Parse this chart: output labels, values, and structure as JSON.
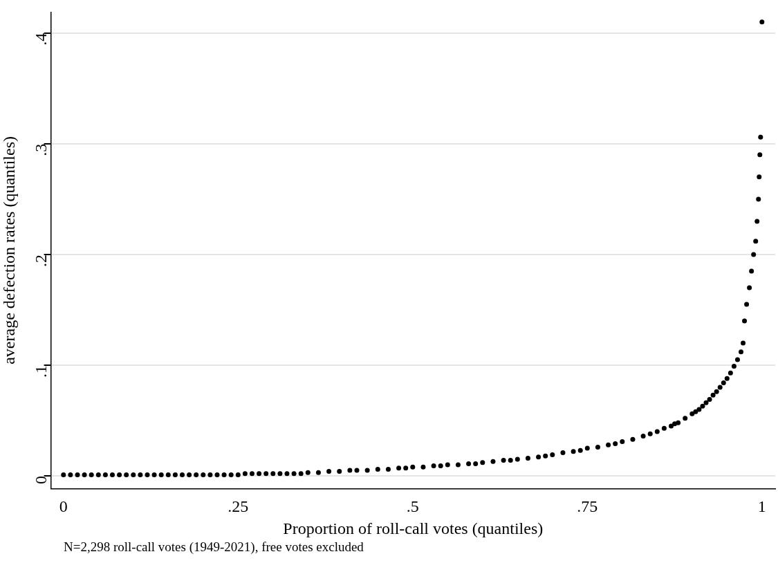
{
  "chart_data": {
    "type": "scatter",
    "xlabel": "Proportion of roll-call votes (quantiles)",
    "ylabel": "average defection rates (quantiles)",
    "annotations": [
      "N=2,298 roll-call votes (1949-2021), free votes excluded"
    ],
    "x": [
      0,
      0.01,
      0.02,
      0.03,
      0.04,
      0.05,
      0.06,
      0.07,
      0.08,
      0.09,
      0.1,
      0.11,
      0.12,
      0.13,
      0.14,
      0.15,
      0.16,
      0.17,
      0.18,
      0.19,
      0.2,
      0.21,
      0.22,
      0.23,
      0.24,
      0.25,
      0.26,
      0.27,
      0.28,
      0.29,
      0.3,
      0.31,
      0.32,
      0.33,
      0.34,
      0.35,
      0.365,
      0.38,
      0.395,
      0.41,
      0.42,
      0.435,
      0.45,
      0.465,
      0.48,
      0.49,
      0.5,
      0.515,
      0.53,
      0.54,
      0.55,
      0.565,
      0.58,
      0.59,
      0.6,
      0.615,
      0.63,
      0.64,
      0.65,
      0.665,
      0.68,
      0.69,
      0.7,
      0.715,
      0.73,
      0.74,
      0.75,
      0.765,
      0.78,
      0.79,
      0.8,
      0.815,
      0.83,
      0.84,
      0.85,
      0.86,
      0.87,
      0.875,
      0.88,
      0.89,
      0.9,
      0.905,
      0.91,
      0.915,
      0.92,
      0.925,
      0.93,
      0.935,
      0.94,
      0.945,
      0.95,
      0.955,
      0.96,
      0.965,
      0.97,
      0.973,
      0.975,
      0.978,
      0.982,
      0.985,
      0.988,
      0.991,
      0.993,
      0.995,
      0.996,
      0.997,
      0.998,
      1.0
    ],
    "series": [
      {
        "color": "#000000",
        "values": [
          0.001,
          0.001,
          0.001,
          0.001,
          0.001,
          0.001,
          0.001,
          0.001,
          0.001,
          0.001,
          0.001,
          0.001,
          0.001,
          0.001,
          0.001,
          0.001,
          0.001,
          0.001,
          0.001,
          0.001,
          0.001,
          0.001,
          0.001,
          0.001,
          0.001,
          0.001,
          0.002,
          0.002,
          0.002,
          0.002,
          0.002,
          0.002,
          0.002,
          0.002,
          0.002,
          0.003,
          0.003,
          0.004,
          0.004,
          0.005,
          0.005,
          0.005,
          0.006,
          0.006,
          0.007,
          0.007,
          0.008,
          0.008,
          0.009,
          0.009,
          0.01,
          0.01,
          0.011,
          0.011,
          0.012,
          0.013,
          0.014,
          0.014,
          0.015,
          0.016,
          0.017,
          0.018,
          0.019,
          0.021,
          0.022,
          0.023,
          0.025,
          0.026,
          0.028,
          0.029,
          0.031,
          0.033,
          0.036,
          0.038,
          0.04,
          0.043,
          0.045,
          0.047,
          0.048,
          0.052,
          0.056,
          0.058,
          0.06,
          0.063,
          0.066,
          0.069,
          0.073,
          0.076,
          0.08,
          0.084,
          0.088,
          0.093,
          0.099,
          0.105,
          0.112,
          0.12,
          0.14,
          0.155,
          0.17,
          0.185,
          0.2,
          0.212,
          0.23,
          0.25,
          0.27,
          0.29,
          0.306,
          0.41
        ]
      }
    ],
    "xlim": [
      -0.018,
      1.019
    ],
    "ylim": [
      -0.0115,
      0.419
    ],
    "xticks": [
      0,
      {
        "value": 0.25,
        "label": ".25"
      },
      {
        "value": 0.5,
        "label": ".5"
      },
      {
        "value": 0.75,
        "label": ".75"
      },
      1
    ],
    "yticks": [
      0,
      {
        "value": 0.1,
        "label": ".1"
      },
      {
        "value": 0.2,
        "label": ".2"
      },
      {
        "value": 0.3,
        "label": ".3"
      },
      {
        "value": 0.4,
        "label": ".4"
      }
    ],
    "grid": "y",
    "legend": false,
    "marker": "circle"
  }
}
